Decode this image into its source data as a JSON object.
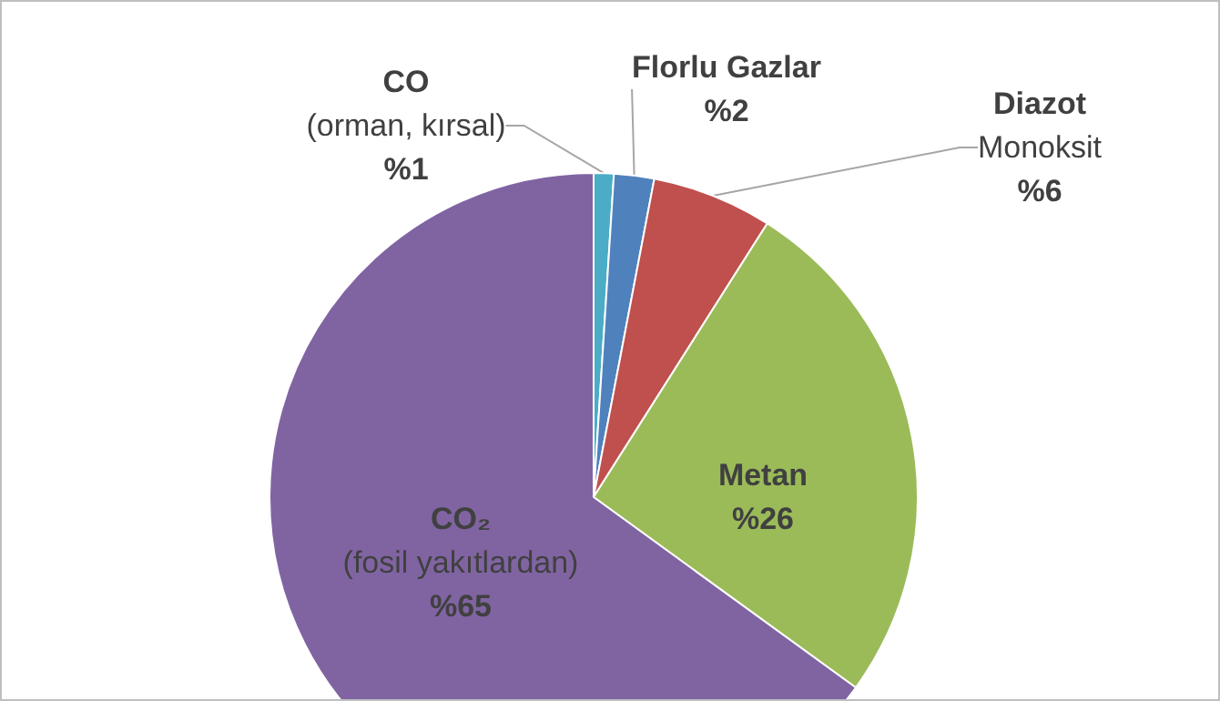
{
  "chart_data": {
    "type": "pie",
    "categories": [
      "CO\n(orman, kırsal)",
      "Florlu Gazlar",
      "Diazot\nMonoksit",
      "Metan",
      "CO₂\n(fosil yakıtlardan)"
    ],
    "values": [
      1,
      2,
      6,
      26,
      65
    ],
    "colors": [
      "#4bacc6",
      "#4f81bd",
      "#c0504d",
      "#9bbb59",
      "#8064a2"
    ],
    "value_labels": [
      "%1",
      "%2",
      "%6",
      "%26",
      "%65"
    ],
    "legend": false
  }
}
